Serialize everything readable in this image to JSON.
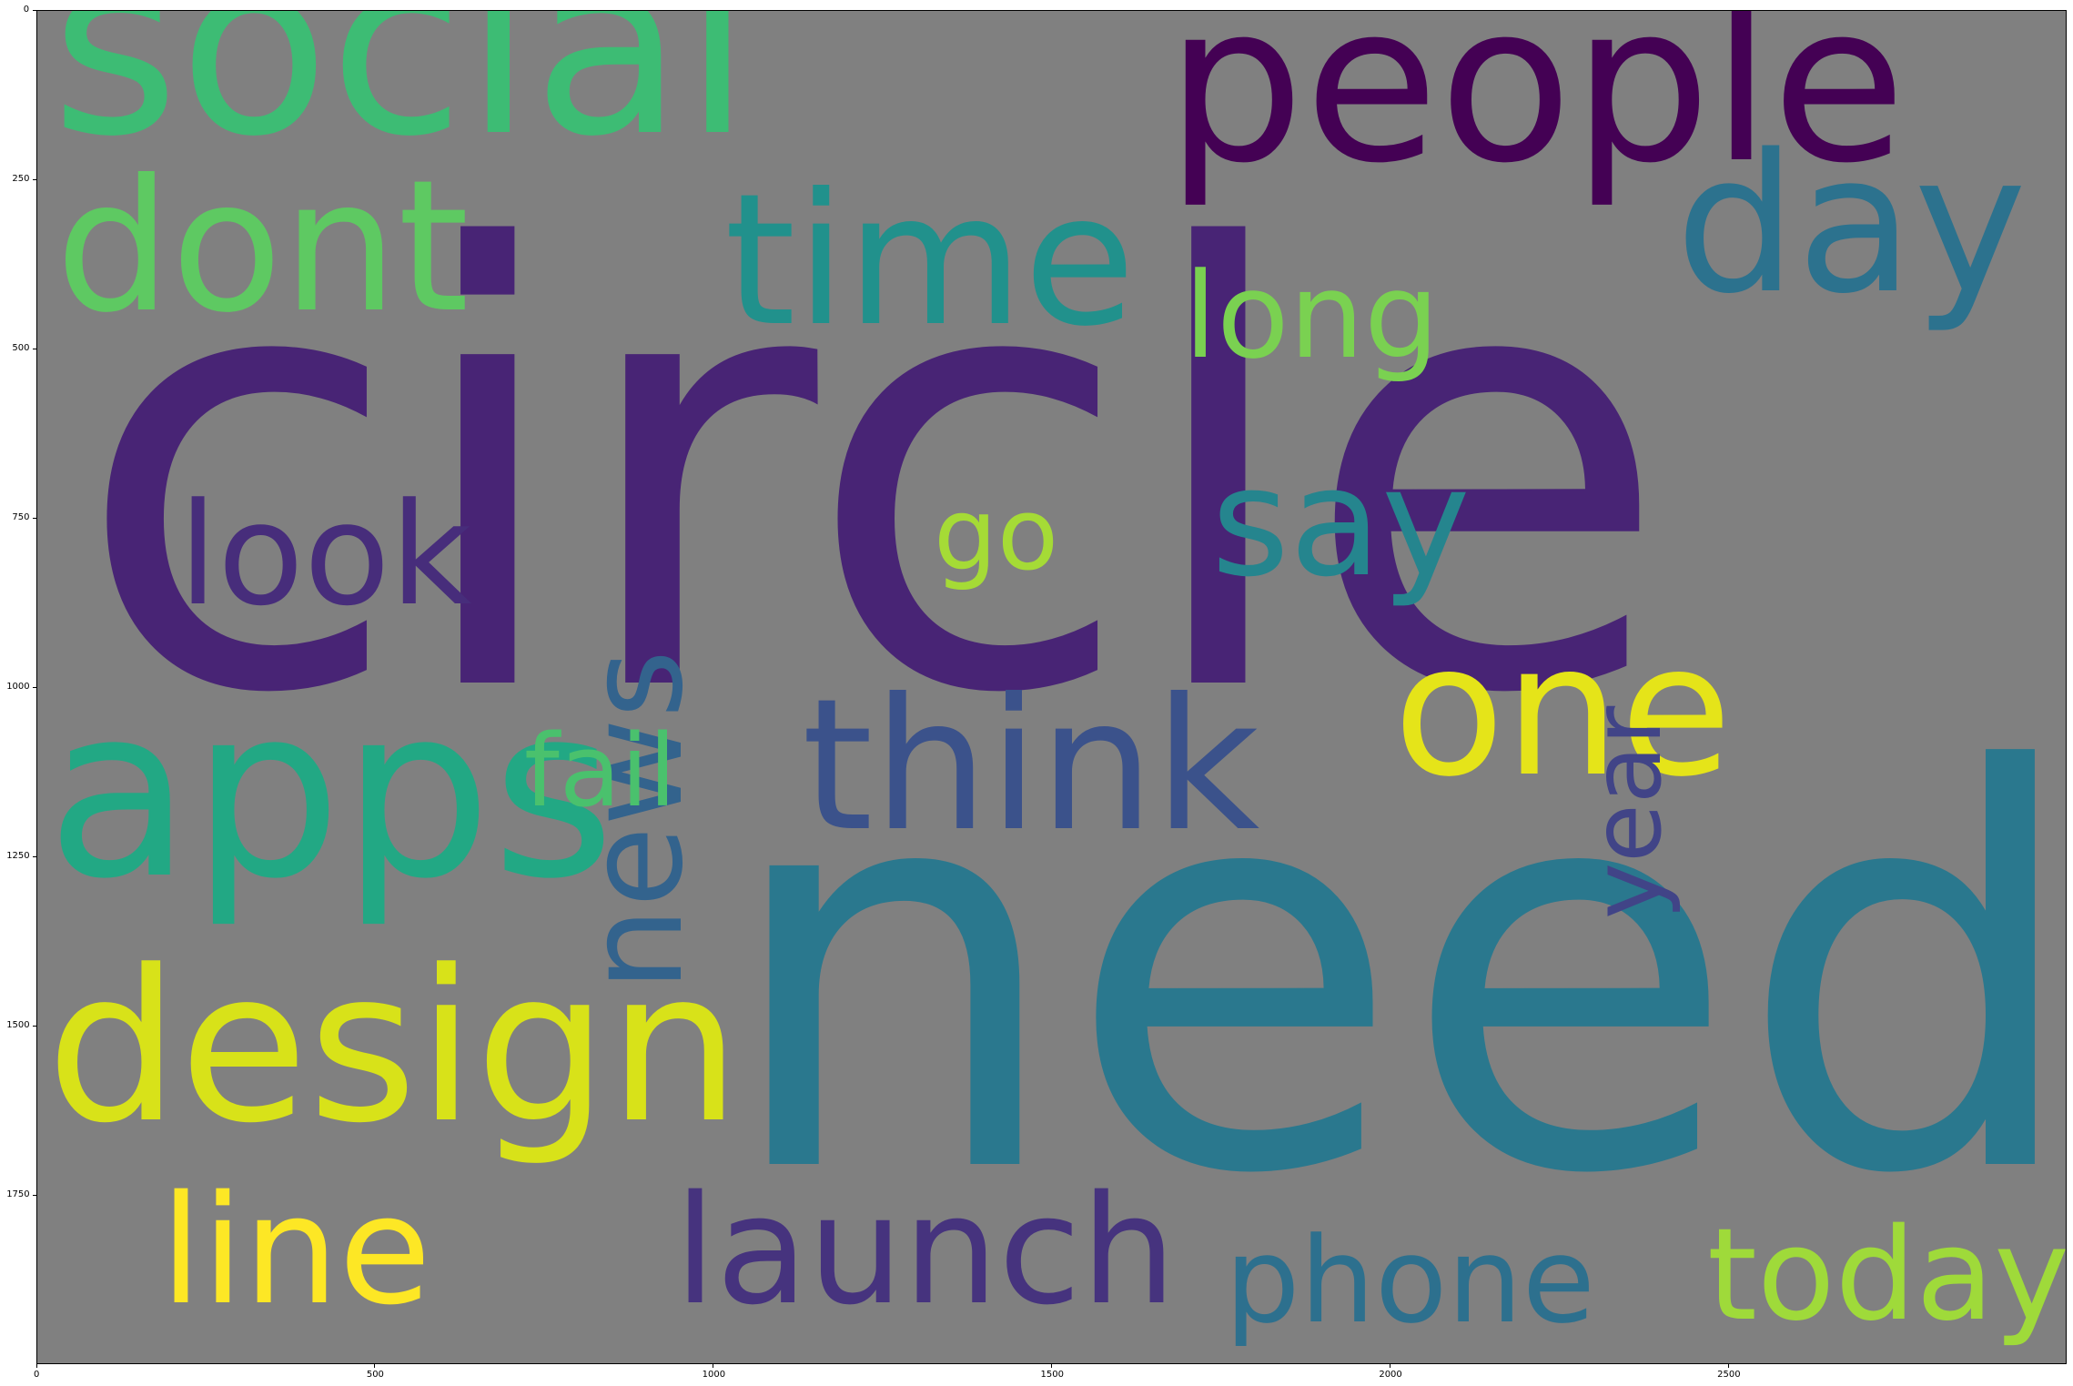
{
  "image": {
    "background_color": "#808080",
    "kind": "word-cloud",
    "words": [
      {
        "text": "circle",
        "color": "#482475"
      },
      {
        "text": "need",
        "color": "#2a788e"
      },
      {
        "text": "social",
        "color": "#3dbc74"
      },
      {
        "text": "people",
        "color": "#440154"
      },
      {
        "text": "apps",
        "color": "#22a884"
      },
      {
        "text": "design",
        "color": "#d8e219"
      },
      {
        "text": "dont",
        "color": "#5ec962"
      },
      {
        "text": "time",
        "color": "#21918c"
      },
      {
        "text": "day",
        "color": "#2c728e"
      },
      {
        "text": "think",
        "color": "#3b528b"
      },
      {
        "text": "one",
        "color": "#e5e419"
      },
      {
        "text": "long",
        "color": "#7ad151"
      },
      {
        "text": "news",
        "color": "#33638d"
      },
      {
        "text": "say",
        "color": "#25858e"
      },
      {
        "text": "look",
        "color": "#472d7b"
      },
      {
        "text": "go",
        "color": "#a5db36"
      },
      {
        "text": "year",
        "color": "#414487"
      },
      {
        "text": "fail",
        "color": "#4ac16d"
      },
      {
        "text": "line",
        "color": "#fde725"
      },
      {
        "text": "launch",
        "color": "#46337e"
      },
      {
        "text": "phone",
        "color": "#2d708e"
      },
      {
        "text": "today",
        "color": "#9fda3a"
      }
    ]
  },
  "axes": {
    "x_ticks": [
      "0",
      "500",
      "1000",
      "1500",
      "2000",
      "2500"
    ],
    "y_ticks": [
      "0",
      "250",
      "500",
      "750",
      "1000",
      "1250",
      "1500",
      "1750"
    ]
  }
}
